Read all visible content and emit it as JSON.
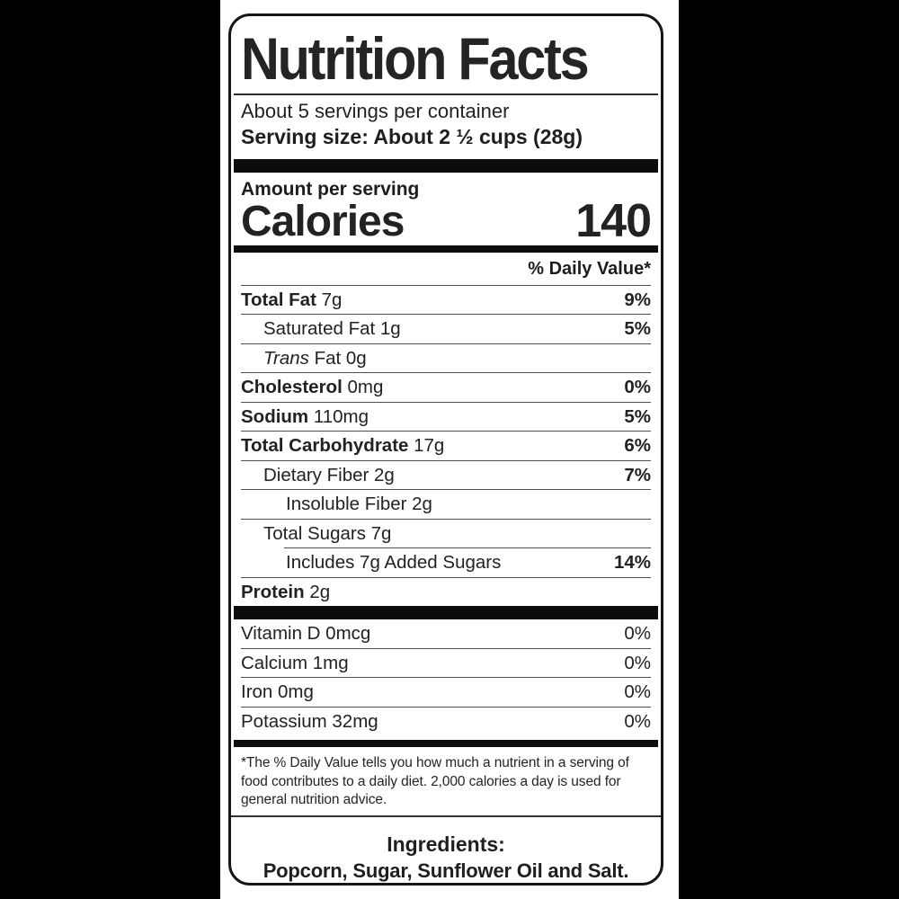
{
  "colors": {
    "page_background": "#000000",
    "label_background": "#ffffff",
    "bar_color": "#0c0c0c",
    "text_color": "#1c1c1c"
  },
  "label": {
    "title": "Nutrition Facts",
    "servings_per_container": "About 5 servings per container",
    "serving_size": "Serving size: About 2 ½ cups (28g)",
    "amount_per_serving": "Amount per serving",
    "calories_label": "Calories",
    "calories_value": "140",
    "daily_value_header": "% Daily Value*",
    "nutrients": [
      {
        "bold": "Total Fat",
        "text": " 7g",
        "dv": "9%",
        "indent": 0
      },
      {
        "text": "Saturated Fat 1g",
        "dv": "5%",
        "indent": 1
      },
      {
        "italic": "Trans",
        "text": " Fat 0g",
        "dv": "",
        "indent": 1
      },
      {
        "bold": "Cholesterol",
        "text": " 0mg",
        "dv": "0%",
        "indent": 0
      },
      {
        "bold": "Sodium",
        "text": " 110mg",
        "dv": "5%",
        "indent": 0
      },
      {
        "bold": "Total Carbohydrate",
        "text": " 17g",
        "dv": "6%",
        "indent": 0
      },
      {
        "text": "Dietary Fiber 2g",
        "dv": "7%",
        "indent": 1
      },
      {
        "text": "Insoluble Fiber 2g",
        "dv": "",
        "indent": 2
      },
      {
        "text": "Total Sugars 7g",
        "dv": "",
        "indent": 1
      },
      {
        "text": "Includes 7g Added Sugars",
        "dv": "14%",
        "indent": 2,
        "rule": "indent"
      },
      {
        "bold": "Protein",
        "text": " 2g",
        "dv": "",
        "indent": 0
      }
    ],
    "vitamins": [
      {
        "text": "Vitamin D 0mcg",
        "dv": "0%"
      },
      {
        "text": "Calcium 1mg",
        "dv": "0%"
      },
      {
        "text": "Iron 0mg",
        "dv": "0%"
      },
      {
        "text": "Potassium 32mg",
        "dv": "0%"
      }
    ],
    "footnote_lines": [
      "*The % Daily Value tells you how much a nutrient in a serving of",
      "food contributes to a daily diet. 2,000 calories a day is used for",
      "general nutrition advice."
    ],
    "ingredients_title": "Ingredients:",
    "ingredients_list": "Popcorn, Sugar, Sunflower Oil and Salt."
  }
}
